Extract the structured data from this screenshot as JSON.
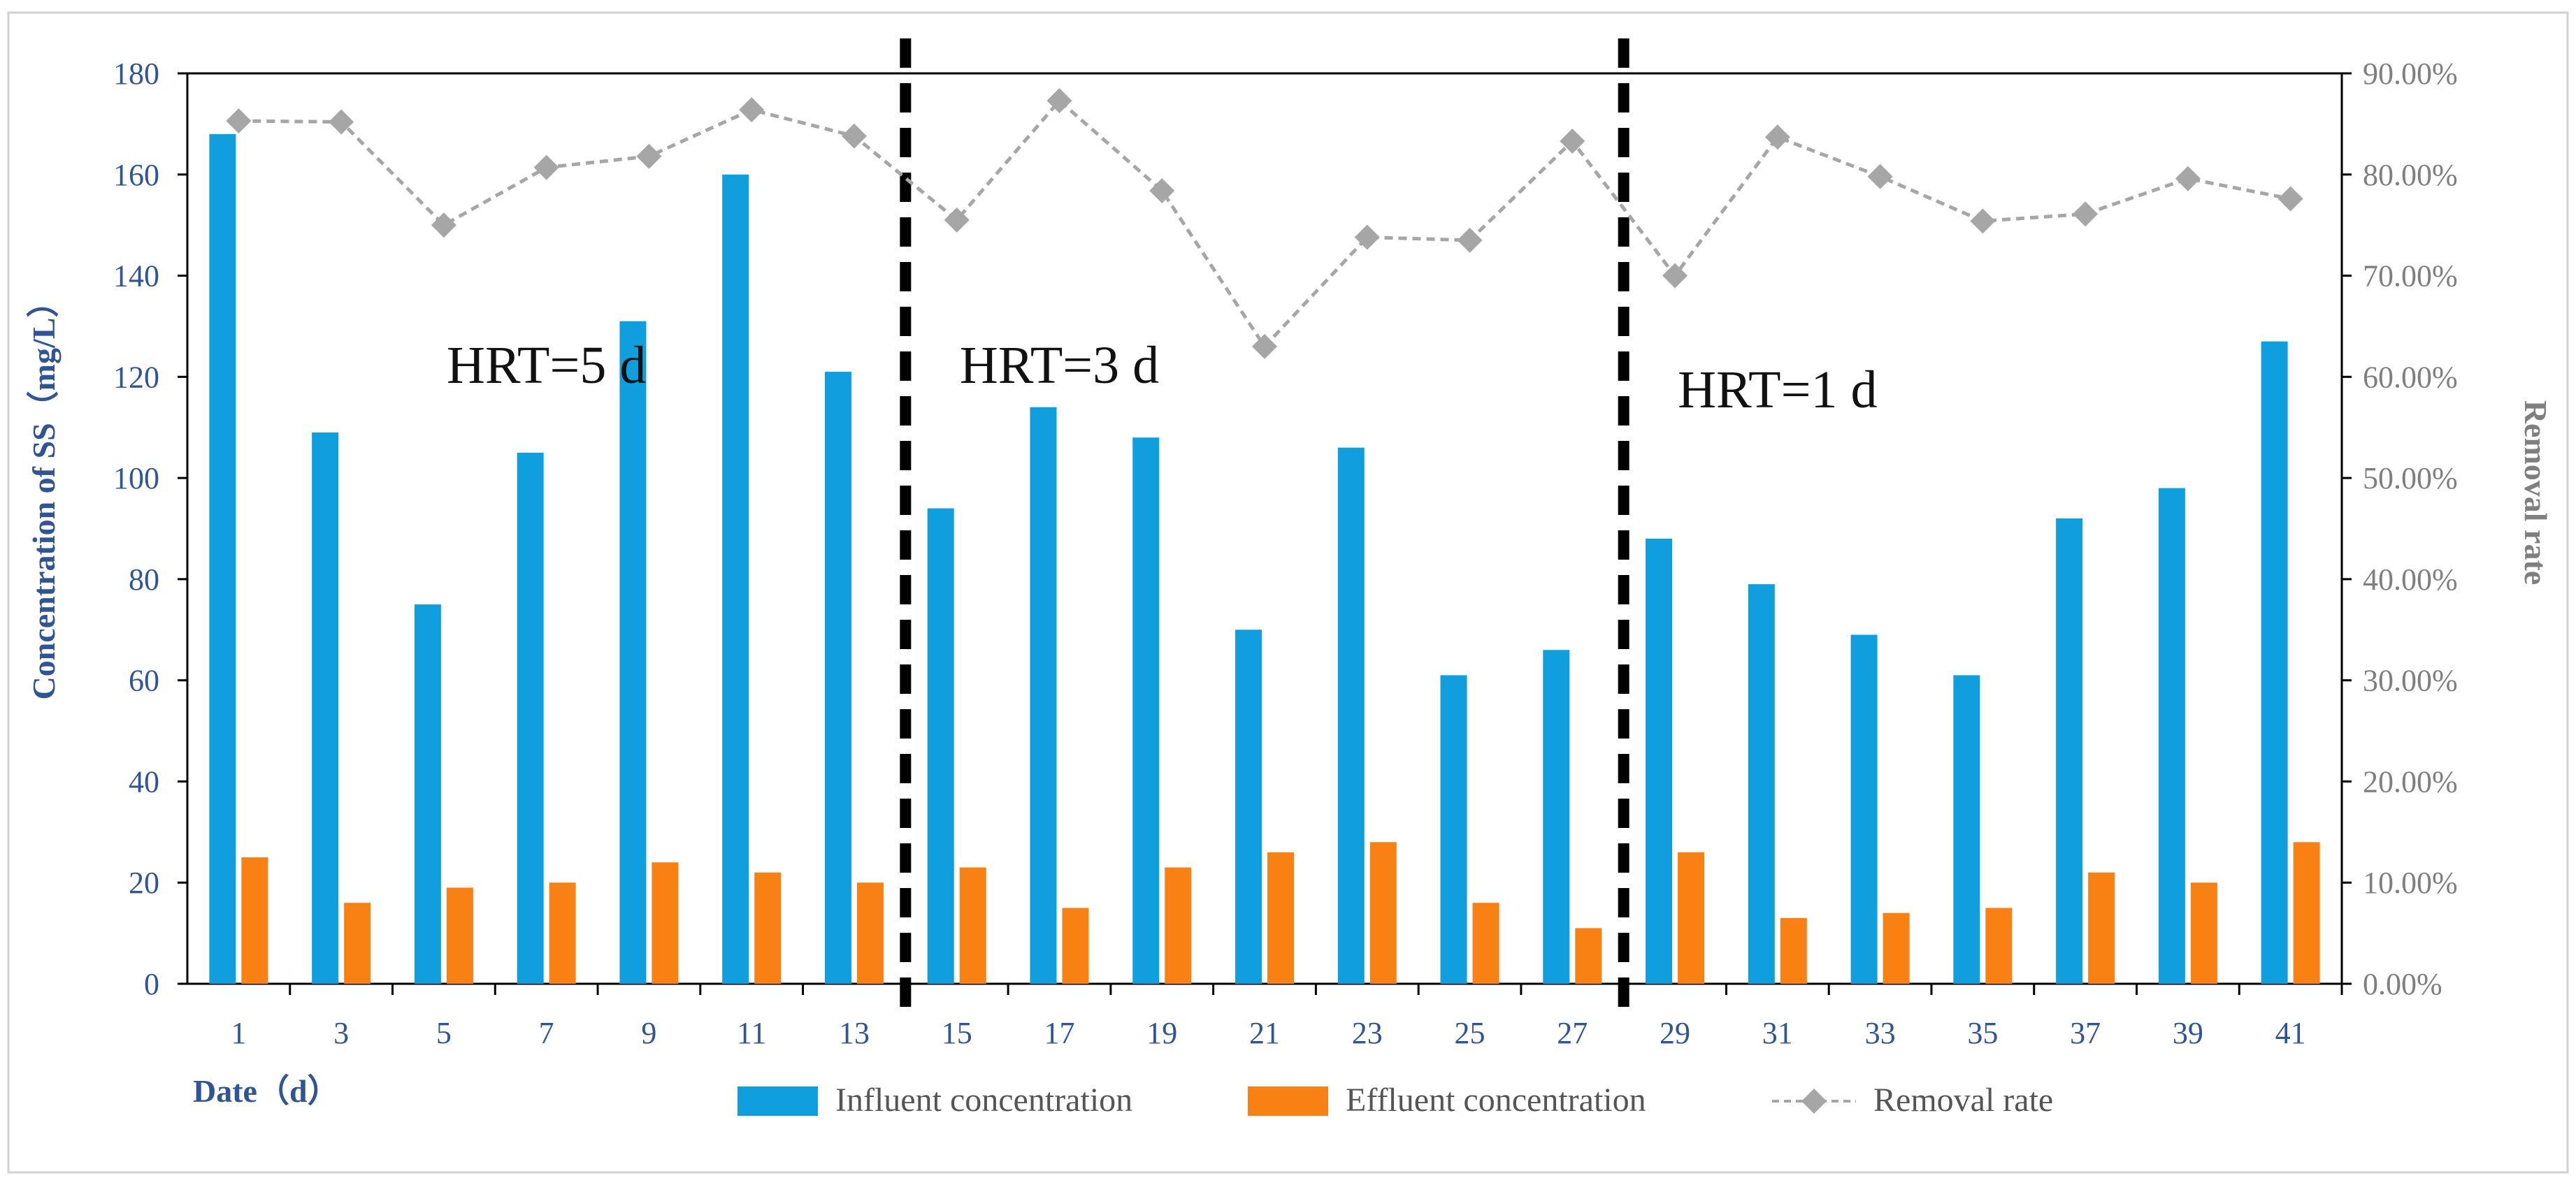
{
  "chart_data": {
    "type": "bar",
    "categories": [
      "1",
      "3",
      "5",
      "7",
      "9",
      "11",
      "13",
      "15",
      "17",
      "19",
      "21",
      "23",
      "25",
      "27",
      "29",
      "31",
      "33",
      "35",
      "37",
      "39",
      "41"
    ],
    "series": [
      {
        "name": "Influent concentration",
        "type": "bar",
        "axis": "left",
        "color": "#0f9ede",
        "values": [
          168,
          109,
          75,
          105,
          131,
          160,
          121,
          94,
          114,
          108,
          70,
          106,
          61,
          66,
          88,
          79,
          69,
          61,
          92,
          98,
          127
        ]
      },
      {
        "name": "Effluent concentration",
        "type": "bar",
        "axis": "left",
        "color": "#f98012",
        "values": [
          25,
          16,
          19,
          20,
          24,
          22,
          20,
          23,
          15,
          23,
          26,
          28,
          16,
          11,
          26,
          13,
          14,
          15,
          22,
          20,
          28
        ]
      },
      {
        "name": "Removal rate",
        "type": "line",
        "axis": "right",
        "color": "#a6a6a6",
        "values": [
          85.3,
          85.2,
          75.0,
          80.7,
          81.8,
          86.4,
          83.8,
          75.5,
          87.3,
          78.4,
          63.0,
          73.8,
          73.5,
          83.3,
          70.0,
          83.7,
          79.8,
          75.4,
          76.1,
          79.6,
          77.6
        ]
      }
    ],
    "title": "",
    "xlabel": "Date（d）",
    "ylabel": "Concentration of SS（mg/L）",
    "y2label": "Removal rate",
    "ylim": [
      0,
      180
    ],
    "yticks": [
      "0",
      "20",
      "40",
      "60",
      "80",
      "100",
      "120",
      "140",
      "160",
      "180"
    ],
    "y2lim": [
      0,
      90
    ],
    "y2ticks": [
      "0.00%",
      "10.00%",
      "20.00%",
      "30.00%",
      "40.00%",
      "50.00%",
      "60.00%",
      "70.00%",
      "80.00%",
      "90.00%"
    ],
    "annotations": [
      {
        "text": "HRT=5 d",
        "x_category": "7"
      },
      {
        "text": "HRT=3 d",
        "x_category": "17"
      },
      {
        "text": "HRT=1 d",
        "x_category": "31"
      }
    ],
    "dividers_after": [
      "13",
      "27"
    ],
    "axis_color_left": "#2f5597",
    "axis_color_right": "#7f7f7f",
    "legend": [
      "Influent concentration",
      "Effluent concentration",
      "Removal rate"
    ],
    "legend_position": "bottom"
  }
}
